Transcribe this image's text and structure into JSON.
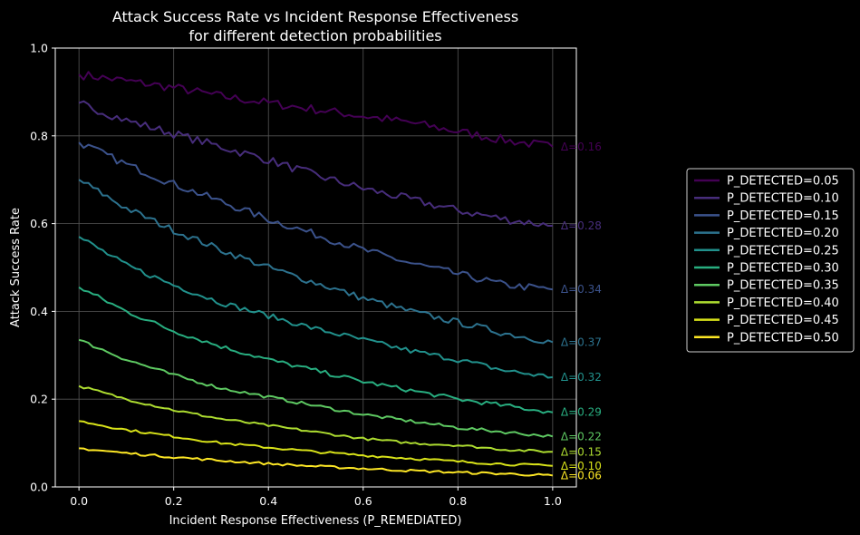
{
  "chart_data": {
    "type": "line",
    "title": "Attack Success Rate vs Incident Response Effectiveness",
    "subtitle": "for different detection probabilities",
    "xlabel": "Incident Response Effectiveness (P_REMEDIATED)",
    "ylabel": "Attack Success Rate",
    "xlim": [
      -0.05,
      1.05
    ],
    "ylim": [
      0.0,
      1.0
    ],
    "xticks": [
      0.0,
      0.2,
      0.4,
      0.6,
      0.8,
      1.0
    ],
    "xtick_labels": [
      "0.0",
      "0.2",
      "0.4",
      "0.6",
      "0.8",
      "1.0"
    ],
    "yticks": [
      0.0,
      0.2,
      0.4,
      0.6,
      0.8,
      1.0
    ],
    "ytick_labels": [
      "0.0",
      "0.2",
      "0.4",
      "0.6",
      "0.8",
      "1.0"
    ],
    "grid": true,
    "legend_position": "outside-right",
    "x": [
      0.0,
      0.1,
      0.2,
      0.3,
      0.4,
      0.5,
      0.6,
      0.7,
      0.8,
      0.9,
      1.0
    ],
    "series": [
      {
        "name": "P_DETECTED=0.05",
        "color": "#440154",
        "delta_label": "Δ=0.16",
        "values": [
          0.94,
          0.925,
          0.91,
          0.89,
          0.875,
          0.86,
          0.845,
          0.83,
          0.81,
          0.79,
          0.775
        ]
      },
      {
        "name": "P_DETECTED=0.10",
        "color": "#472d7b",
        "delta_label": "Δ=0.28",
        "values": [
          0.875,
          0.835,
          0.805,
          0.775,
          0.745,
          0.71,
          0.68,
          0.655,
          0.63,
          0.61,
          0.595
        ]
      },
      {
        "name": "P_DETECTED=0.15",
        "color": "#3b528b",
        "delta_label": "Δ=0.34",
        "values": [
          0.785,
          0.735,
          0.69,
          0.65,
          0.61,
          0.575,
          0.54,
          0.51,
          0.485,
          0.46,
          0.45
        ]
      },
      {
        "name": "P_DETECTED=0.20",
        "color": "#2c728e",
        "delta_label": "Δ=0.37",
        "values": [
          0.7,
          0.635,
          0.585,
          0.54,
          0.5,
          0.465,
          0.43,
          0.4,
          0.375,
          0.35,
          0.33
        ]
      },
      {
        "name": "P_DETECTED=0.25",
        "color": "#21918c",
        "delta_label": "Δ=0.32",
        "values": [
          0.57,
          0.505,
          0.46,
          0.42,
          0.39,
          0.36,
          0.335,
          0.31,
          0.29,
          0.265,
          0.25
        ]
      },
      {
        "name": "P_DETECTED=0.30",
        "color": "#28ae80",
        "delta_label": "Δ=0.29",
        "values": [
          0.455,
          0.4,
          0.355,
          0.32,
          0.29,
          0.265,
          0.24,
          0.22,
          0.2,
          0.185,
          0.17
        ]
      },
      {
        "name": "P_DETECTED=0.35",
        "color": "#5ec962",
        "delta_label": "Δ=0.22",
        "values": [
          0.335,
          0.29,
          0.255,
          0.225,
          0.205,
          0.185,
          0.165,
          0.15,
          0.135,
          0.125,
          0.115
        ]
      },
      {
        "name": "P_DETECTED=0.40",
        "color": "#addc30",
        "delta_label": "Δ=0.15",
        "values": [
          0.23,
          0.2,
          0.175,
          0.155,
          0.14,
          0.125,
          0.11,
          0.1,
          0.095,
          0.085,
          0.08
        ]
      },
      {
        "name": "P_DETECTED=0.45",
        "color": "#d8e219",
        "delta_label": "Δ=0.10",
        "values": [
          0.15,
          0.13,
          0.115,
          0.1,
          0.09,
          0.08,
          0.072,
          0.065,
          0.058,
          0.052,
          0.048
        ]
      },
      {
        "name": "P_DETECTED=0.50",
        "color": "#fde725",
        "delta_label": "Δ=0.06",
        "values": [
          0.088,
          0.077,
          0.068,
          0.06,
          0.053,
          0.047,
          0.042,
          0.037,
          0.033,
          0.03,
          0.026
        ]
      }
    ]
  }
}
